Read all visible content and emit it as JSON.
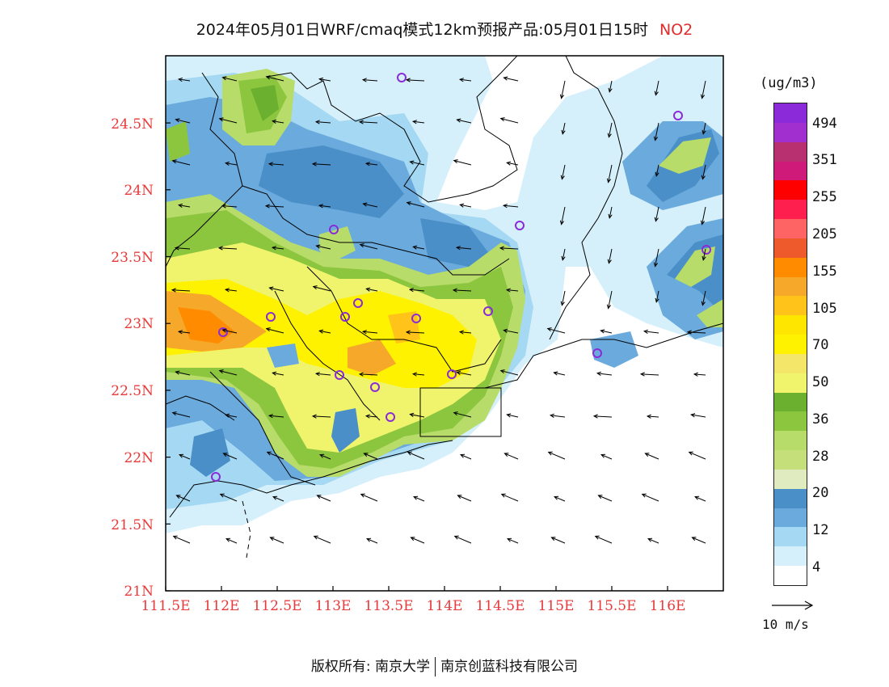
{
  "title": {
    "text": "2024年05月01日WRF/cmaq模式12km预报产品:05月01日15时",
    "species": "NO2"
  },
  "axes": {
    "y_labels": [
      "24.5N",
      "24N",
      "23.5N",
      "23N",
      "22.5N",
      "22N",
      "21.5N",
      "21N"
    ],
    "x_labels": [
      "111.5E",
      "112E",
      "112.5E",
      "113E",
      "113.5E",
      "114E",
      "114.5E",
      "115E",
      "115.5E",
      "116E"
    ]
  },
  "colorbar": {
    "unit": "(ug/m3)",
    "labels": [
      "494",
      "351",
      "255",
      "205",
      "155",
      "105",
      "70",
      "50",
      "36",
      "28",
      "20",
      "12",
      "4"
    ],
    "colors": [
      "#8a2ad8",
      "#a12fd0",
      "#b83070",
      "#cf1a7a",
      "#ff0000",
      "#ff1f4e",
      "#ff6464",
      "#ee5a2c",
      "#ff8c00",
      "#f6a82a",
      "#ffc31a",
      "#ffe600",
      "#fff200",
      "#f3e668",
      "#f0f46c",
      "#6bb12f",
      "#8cc63f",
      "#b7dc6a",
      "#c5e07a",
      "#e1ebc0",
      "#4a8fc8",
      "#6aaadc",
      "#a5d8f2",
      "#d5f0fb",
      "#ffffff"
    ]
  },
  "wind_scale": {
    "label": "10 m/s"
  },
  "footer": {
    "left": "版权所有: 南京大学",
    "right": "南京创蓝科技有限公司"
  }
}
